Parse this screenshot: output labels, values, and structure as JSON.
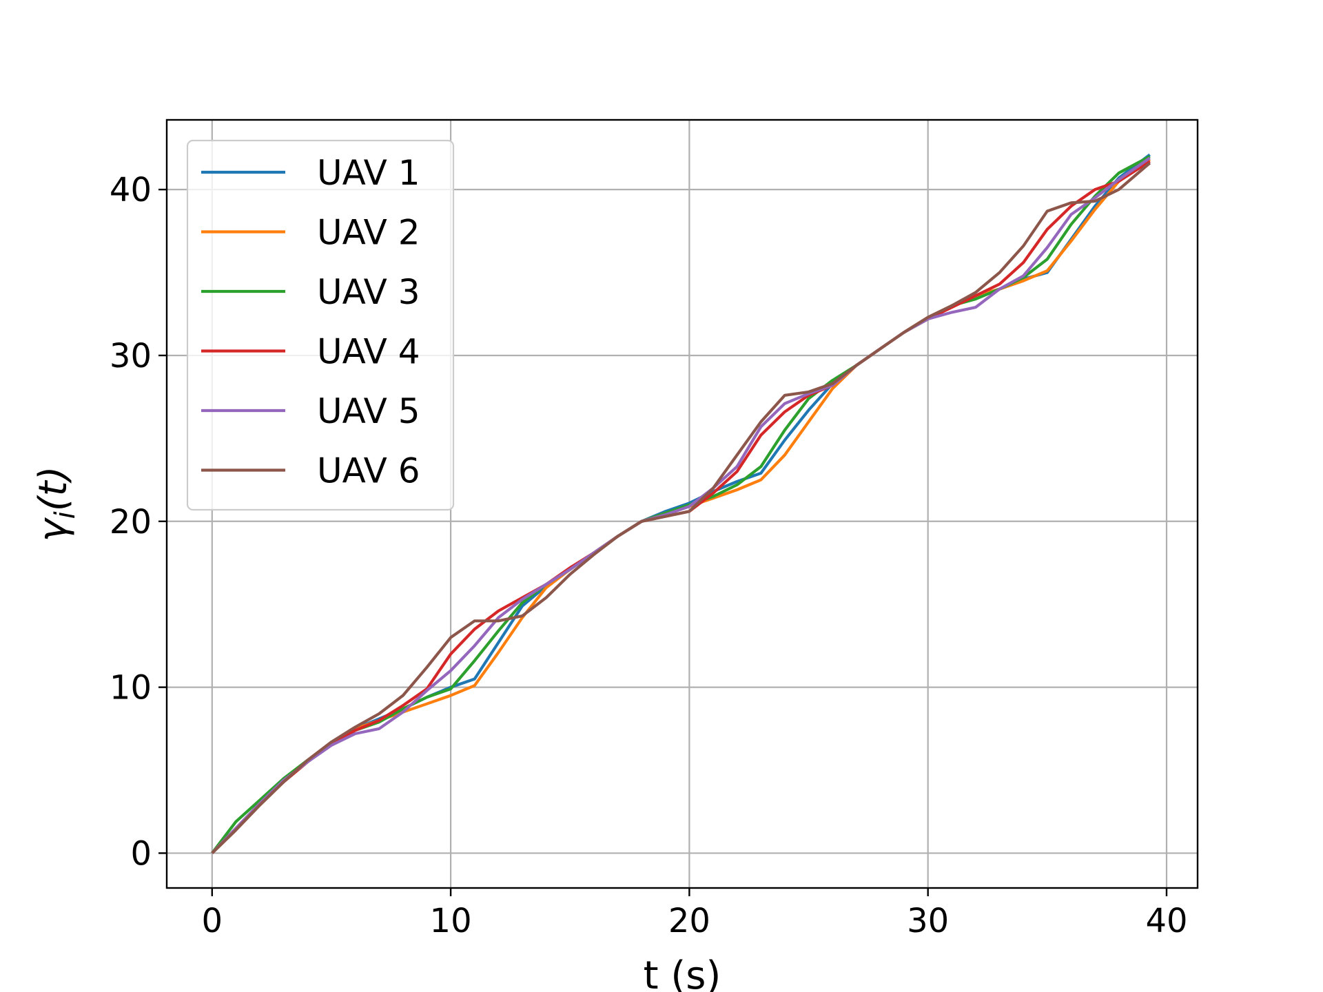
{
  "chart_data": {
    "type": "line",
    "title": "",
    "xlabel": "t (s)",
    "ylabel_base": "γ",
    "ylabel_sub": "i",
    "ylabel_rest": "(t)",
    "xlim": [
      -1.9,
      41.3
    ],
    "ylim": [
      -2.1,
      44.2
    ],
    "xticks": [
      0,
      10,
      20,
      30,
      40
    ],
    "yticks": [
      0,
      10,
      20,
      30,
      40
    ],
    "grid": true,
    "legend_position": "upper-left",
    "series": [
      {
        "name": "UAV 1",
        "color": "#1f77b4",
        "x": [
          0,
          1,
          2,
          3,
          4,
          5,
          6,
          7,
          8,
          9,
          10,
          11,
          12,
          13,
          14,
          15,
          16,
          17,
          18,
          19,
          20,
          21,
          22,
          23,
          24,
          25,
          26,
          27,
          28,
          29,
          30,
          31,
          32,
          33,
          34,
          35,
          36,
          37,
          38,
          39.3
        ],
        "y": [
          0,
          1.4,
          2.9,
          4.3,
          5.5,
          6.6,
          7.5,
          8.1,
          8.7,
          9.4,
          10.0,
          10.5,
          12.7,
          14.9,
          16.1,
          17.1,
          18.1,
          19.1,
          20.0,
          20.6,
          21.1,
          21.8,
          22.4,
          22.9,
          24.9,
          26.7,
          28.3,
          29.4,
          30.4,
          31.4,
          32.3,
          33.0,
          33.6,
          34.0,
          34.6,
          35.0,
          37.0,
          39.0,
          40.7,
          42.1
        ]
      },
      {
        "name": "UAV 2",
        "color": "#ff7f0e",
        "x": [
          0,
          1,
          2,
          3,
          4,
          5,
          6,
          7,
          8,
          9,
          10,
          11,
          12,
          13,
          14,
          15,
          16,
          17,
          18,
          19,
          20,
          21,
          22,
          23,
          24,
          25,
          26,
          27,
          28,
          29,
          30,
          31,
          32,
          33,
          34,
          35,
          36,
          37,
          38,
          39.3
        ],
        "y": [
          0,
          1.4,
          2.9,
          4.3,
          5.5,
          6.6,
          7.5,
          8.0,
          8.5,
          9.0,
          9.5,
          10.1,
          12.1,
          14.2,
          16.0,
          17.1,
          18.1,
          19.1,
          20.0,
          20.5,
          20.9,
          21.4,
          21.9,
          22.5,
          24.0,
          26.0,
          28.0,
          29.4,
          30.4,
          31.4,
          32.3,
          33.0,
          33.6,
          34.0,
          34.5,
          35.1,
          36.9,
          38.8,
          40.5,
          41.8
        ]
      },
      {
        "name": "UAV 3",
        "color": "#2ca02c",
        "x": [
          0,
          1,
          2,
          3,
          4,
          5,
          6,
          7,
          8,
          9,
          10,
          11,
          12,
          13,
          14,
          15,
          16,
          17,
          18,
          19,
          20,
          21,
          22,
          23,
          24,
          25,
          26,
          27,
          28,
          29,
          30,
          31,
          32,
          33,
          34,
          35,
          36,
          37,
          38,
          39.3
        ],
        "y": [
          0,
          1.9,
          3.2,
          4.5,
          5.6,
          6.6,
          7.4,
          7.9,
          8.7,
          9.4,
          9.9,
          11.6,
          13.4,
          15.1,
          16.2,
          17.1,
          18.1,
          19.1,
          20.0,
          20.5,
          21.0,
          21.5,
          22.2,
          23.3,
          25.5,
          27.4,
          28.5,
          29.4,
          30.4,
          31.4,
          32.2,
          33.0,
          33.4,
          34.0,
          34.7,
          35.8,
          37.9,
          39.6,
          41.0,
          42.0
        ]
      },
      {
        "name": "UAV 4",
        "color": "#d62728",
        "x": [
          0,
          1,
          2,
          3,
          4,
          5,
          6,
          7,
          8,
          9,
          10,
          11,
          12,
          13,
          14,
          15,
          16,
          17,
          18,
          19,
          20,
          21,
          22,
          23,
          24,
          25,
          26,
          27,
          28,
          29,
          30,
          31,
          32,
          33,
          34,
          35,
          36,
          37,
          38,
          39.3
        ],
        "y": [
          0,
          1.5,
          3.0,
          4.3,
          5.5,
          6.6,
          7.4,
          8.0,
          8.9,
          9.9,
          12.0,
          13.5,
          14.6,
          15.4,
          16.2,
          17.2,
          18.1,
          19.1,
          20.0,
          20.3,
          20.6,
          21.7,
          23.0,
          25.2,
          26.6,
          27.6,
          28.2,
          29.4,
          30.4,
          31.4,
          32.2,
          32.9,
          33.6,
          34.3,
          35.6,
          37.6,
          39.0,
          40.0,
          40.5,
          41.7
        ]
      },
      {
        "name": "UAV 5",
        "color": "#9467bd",
        "x": [
          0,
          1,
          2,
          3,
          4,
          5,
          6,
          7,
          8,
          9,
          10,
          11,
          12,
          13,
          14,
          15,
          16,
          17,
          18,
          19,
          20,
          21,
          22,
          23,
          24,
          25,
          26,
          27,
          28,
          29,
          30,
          31,
          32,
          33,
          34,
          35,
          36,
          37,
          38,
          39.3
        ],
        "y": [
          0,
          1.5,
          3.0,
          4.4,
          5.5,
          6.5,
          7.2,
          7.5,
          8.5,
          9.8,
          11.0,
          12.5,
          14.2,
          15.3,
          16.2,
          17.1,
          18.1,
          19.1,
          20.0,
          20.4,
          20.9,
          22.0,
          23.3,
          25.7,
          27.1,
          27.7,
          28.2,
          29.4,
          30.4,
          31.4,
          32.2,
          32.6,
          32.9,
          34.0,
          34.8,
          36.5,
          38.5,
          39.5,
          40.6,
          41.9
        ]
      },
      {
        "name": "UAV 6",
        "color": "#8c564b",
        "x": [
          0,
          1,
          2,
          3,
          4,
          5,
          6,
          7,
          8,
          9,
          10,
          11,
          12,
          13,
          14,
          15,
          16,
          17,
          18,
          19,
          20,
          21,
          22,
          23,
          24,
          25,
          26,
          27,
          28,
          29,
          30,
          31,
          32,
          33,
          34,
          35,
          36,
          37,
          38,
          39.3
        ],
        "y": [
          0,
          1.4,
          2.9,
          4.3,
          5.6,
          6.7,
          7.6,
          8.4,
          9.5,
          11.2,
          13.0,
          14.0,
          14.0,
          14.3,
          15.4,
          16.8,
          18.0,
          19.1,
          20.0,
          20.3,
          20.6,
          22.0,
          24.0,
          26.0,
          27.6,
          27.8,
          28.3,
          29.4,
          30.4,
          31.4,
          32.3,
          33.0,
          33.8,
          35.0,
          36.6,
          38.7,
          39.2,
          39.3,
          40.0,
          41.6
        ]
      }
    ]
  }
}
